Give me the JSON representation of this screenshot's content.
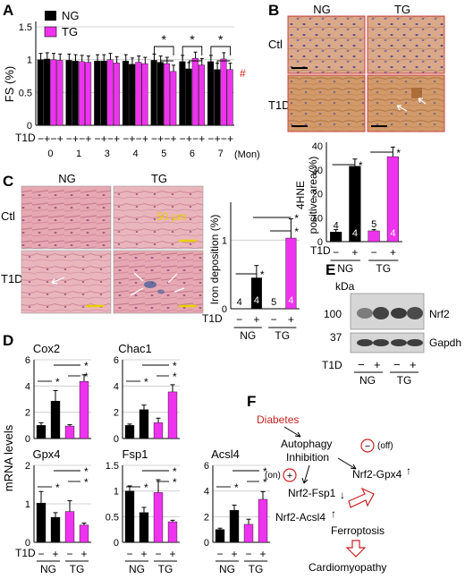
{
  "colors": {
    "ng": "#000000",
    "tg": "#ee33ee",
    "accent_red": "#cc2222",
    "scale_yellow": "#e8d000"
  },
  "common": {
    "t1d_label": "T1D",
    "minus": "−",
    "plus": "+",
    "ng": "NG",
    "tg": "TG",
    "star": "*",
    "hash": "#"
  },
  "panels": {
    "A": "A",
    "B": "B",
    "C": "C",
    "D": "D",
    "E": "E",
    "F": "F"
  },
  "panelA": {
    "ylabel": "FS (%)",
    "legend": [
      "NG",
      "TG"
    ],
    "unit": "(Mon)",
    "chart_data": {
      "type": "bar",
      "categories": [
        "0",
        "1",
        "3",
        "4",
        "5",
        "6",
        "7"
      ],
      "ylim": [
        0,
        1.5
      ],
      "yticks": [
        "0",
        "0.5",
        "1",
        "1.5"
      ],
      "series": [
        {
          "name": "NG",
          "ctl": [
            1.0,
            0.99,
            0.98,
            0.98,
            0.99,
            0.97,
            0.97
          ],
          "t1d": [
            1.01,
            0.98,
            0.98,
            0.93,
            0.96,
            0.86,
            0.85
          ]
        },
        {
          "name": "TG",
          "ctl": [
            1.0,
            0.97,
            1.0,
            0.96,
            0.94,
            1.02,
            1.01
          ],
          "t1d": [
            0.99,
            0.96,
            0.95,
            0.94,
            0.82,
            0.92,
            0.85
          ]
        }
      ]
    }
  },
  "panelB": {
    "img_cols": [
      "NG",
      "TG"
    ],
    "img_rows": [
      "Ctl",
      "T1D"
    ],
    "ylabel1": "4HNE",
    "ylabel2": "positive area(%)",
    "chart_data": {
      "type": "bar",
      "categories": [
        "NG −",
        "NG +",
        "TG −",
        "TG +"
      ],
      "values": [
        4,
        31.5,
        4.5,
        35.5
      ],
      "errors": [
        1,
        3,
        0.5,
        4
      ],
      "n": [
        "4",
        "4",
        "5",
        "4"
      ],
      "ylim": [
        0,
        40
      ],
      "yticks": [
        "0",
        "10",
        "20",
        "30",
        "40"
      ]
    }
  },
  "panelC": {
    "img_cols": [
      "NG",
      "TG"
    ],
    "img_rows": [
      "Ctl",
      "T1D"
    ],
    "scale_label": "50 µm",
    "ylabel": "Iron deposition (%)",
    "chart_data": {
      "type": "bar",
      "categories": [
        "NG −",
        "NG +",
        "TG −",
        "TG +"
      ],
      "values": [
        0,
        0.45,
        0,
        1.03
      ],
      "errors": [
        0,
        0.18,
        0,
        0.28
      ],
      "n": [
        "4",
        "4",
        "5",
        "4"
      ],
      "ylim": [
        0,
        1.5
      ],
      "yticks": [
        "0",
        "1"
      ]
    }
  },
  "panelD": {
    "ylabel": "mRNA levels",
    "chart_data": [
      {
        "type": "bar",
        "title": "Cox2",
        "values": [
          1.0,
          2.85,
          0.95,
          4.35
        ],
        "errors": [
          0.2,
          0.8,
          0.1,
          0.5
        ],
        "ylim": [
          0,
          6
        ],
        "yticks": [
          "0",
          "2",
          "4",
          "6"
        ]
      },
      {
        "type": "bar",
        "title": "Chac1",
        "values": [
          1.0,
          2.2,
          1.2,
          3.55
        ],
        "errors": [
          0.1,
          0.35,
          0.35,
          0.55
        ],
        "ylim": [
          0,
          6
        ],
        "yticks": [
          "0",
          "2",
          "4",
          "6"
        ]
      },
      {
        "type": "bar",
        "title": "Gpx4",
        "values": [
          1.02,
          0.65,
          0.8,
          0.45
        ],
        "errors": [
          0.3,
          0.12,
          0.28,
          0.05
        ],
        "ylim": [
          0,
          2
        ],
        "yticks": [
          "0",
          "1",
          "2"
        ]
      },
      {
        "type": "bar",
        "title": "Fsp1",
        "values": [
          1.0,
          0.58,
          0.97,
          0.4
        ],
        "errors": [
          0.1,
          0.1,
          0.25,
          0.03
        ],
        "ylim": [
          0,
          1.5
        ],
        "yticks": [
          "0",
          "0.5",
          "1",
          "1.5"
        ]
      },
      {
        "type": "bar",
        "title": "Acsl4",
        "values": [
          1.0,
          2.5,
          1.4,
          3.35
        ],
        "errors": [
          0.1,
          0.4,
          0.4,
          0.6
        ],
        "ylim": [
          0,
          6
        ],
        "yticks": [
          "0",
          "2",
          "4",
          "6"
        ]
      }
    ]
  },
  "panelE": {
    "kda": "kDa",
    "markers": [
      "100",
      "37"
    ],
    "bands": [
      "Nrf2",
      "Gapdh"
    ]
  },
  "panelF": {
    "diabetes": "Diabetes",
    "autophagy1": "Autophagy",
    "autophagy2": "Inhibition",
    "off": "(off)",
    "on": "(on)",
    "gpx4": "Nrf2-Gpx4",
    "fsp1": "Nrf2-Fsp1",
    "acsl4": "Nrf2-Acsl4",
    "ferroptosis": "Ferroptosis",
    "cardio": "Cardiomyopathy",
    "minus_sign": "−",
    "plus_sign": "+",
    "up": "↑",
    "down": "↓"
  }
}
